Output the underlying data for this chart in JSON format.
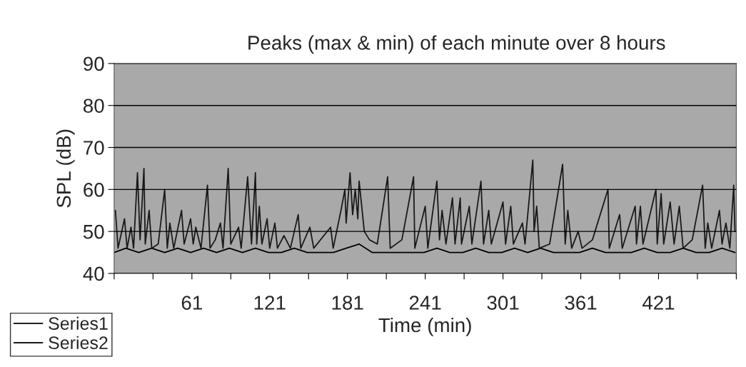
{
  "chart_data": {
    "type": "line",
    "title": "Peaks (max & min) of each minute over 8 hours",
    "xlabel": "Time (min)",
    "ylabel": "SPL (dB)",
    "xlim": [
      1,
      481
    ],
    "ylim": [
      40,
      90
    ],
    "yticks": [
      40,
      50,
      60,
      70,
      80,
      90
    ],
    "xticks": [
      {
        "value": 1,
        "label": null
      },
      {
        "value": 31,
        "label": null
      },
      {
        "value": 61,
        "label": "61"
      },
      {
        "value": 91,
        "label": null
      },
      {
        "value": 121,
        "label": "121"
      },
      {
        "value": 151,
        "label": null
      },
      {
        "value": 181,
        "label": "181"
      },
      {
        "value": 211,
        "label": null
      },
      {
        "value": 241,
        "label": "241"
      },
      {
        "value": 271,
        "label": null
      },
      {
        "value": 301,
        "label": "301"
      },
      {
        "value": 331,
        "label": null
      },
      {
        "value": 361,
        "label": "361"
      },
      {
        "value": 391,
        "label": null
      },
      {
        "value": 421,
        "label": "421"
      },
      {
        "value": 451,
        "label": null
      },
      {
        "value": 481,
        "label": null
      }
    ],
    "grid": "y",
    "legend": "bottom left",
    "marker": "none",
    "line_style": "solid",
    "series": [
      {
        "name": "Series1",
        "color": "#000000",
        "x": [
          1,
          10,
          20,
          30,
          40,
          50,
          60,
          70,
          80,
          90,
          100,
          110,
          120,
          130,
          140,
          150,
          160,
          170,
          180,
          190,
          200,
          210,
          220,
          230,
          240,
          250,
          260,
          270,
          280,
          290,
          300,
          310,
          320,
          330,
          340,
          350,
          360,
          370,
          380,
          390,
          400,
          410,
          420,
          430,
          440,
          450,
          460,
          470,
          480
        ],
        "values": [
          45,
          46,
          45,
          46,
          45,
          46,
          45,
          46,
          45,
          46,
          45,
          46,
          45,
          45,
          46,
          45,
          45,
          45,
          46,
          47,
          45,
          45,
          45,
          45,
          45,
          46,
          45,
          45,
          46,
          45,
          45,
          46,
          45,
          46,
          45,
          45,
          45,
          46,
          45,
          45,
          45,
          46,
          45,
          45,
          46,
          45,
          45,
          46,
          45
        ]
      },
      {
        "name": "Series2",
        "color": "#1a1a1a",
        "x": [
          2,
          4,
          9,
          11,
          14,
          16,
          19,
          21,
          24,
          25,
          28,
          30,
          35,
          40,
          42,
          44,
          47,
          53,
          55,
          60,
          62,
          64,
          68,
          73,
          75,
          79,
          83,
          85,
          89,
          91,
          97,
          99,
          104,
          107,
          110,
          111,
          113,
          115,
          119,
          121,
          125,
          127,
          132,
          137,
          143,
          145,
          152,
          155,
          168,
          170,
          176,
          179,
          180,
          183,
          185,
          187,
          189,
          190,
          192,
          194,
          198,
          204,
          212,
          214,
          223,
          232,
          233,
          241,
          243,
          250,
          252,
          254,
          257,
          262,
          264,
          268,
          269,
          275,
          277,
          284,
          286,
          290,
          292,
          301,
          303,
          307,
          309,
          316,
          318,
          324,
          325,
          327,
          329,
          337,
          347,
          349,
          351,
          354,
          359,
          362,
          370,
          382,
          383,
          391,
          393,
          403,
          404,
          407,
          409,
          419,
          420,
          423,
          425,
          430,
          433,
          437,
          440,
          447,
          455,
          457,
          459,
          462,
          468,
          470,
          473,
          476,
          479,
          480
        ],
        "values": [
          55,
          46,
          53,
          46,
          51,
          46,
          64,
          48,
          65,
          47,
          55,
          46,
          47,
          60,
          46,
          52,
          46,
          55,
          47,
          53,
          47,
          51,
          46,
          61,
          46,
          48,
          52,
          46,
          65,
          47,
          51,
          46,
          63,
          47,
          64,
          47,
          56,
          47,
          53,
          46,
          52,
          46,
          49,
          46,
          54,
          46,
          51,
          46,
          51,
          46,
          55,
          60,
          52,
          64,
          54,
          60,
          53,
          62,
          56,
          50,
          48,
          47,
          63,
          46,
          48,
          63,
          46,
          56,
          46,
          62,
          48,
          55,
          47,
          58,
          47,
          58,
          47,
          56,
          47,
          62,
          47,
          55,
          47,
          57,
          47,
          56,
          47,
          52,
          47,
          67,
          50,
          56,
          46,
          47,
          66,
          47,
          55,
          46,
          50,
          46,
          48,
          60,
          46,
          54,
          46,
          56,
          47,
          56,
          47,
          60,
          47,
          59,
          47,
          57,
          47,
          56,
          46,
          48,
          61,
          46,
          52,
          46,
          55,
          47,
          52,
          46,
          61,
          50
        ]
      }
    ]
  }
}
